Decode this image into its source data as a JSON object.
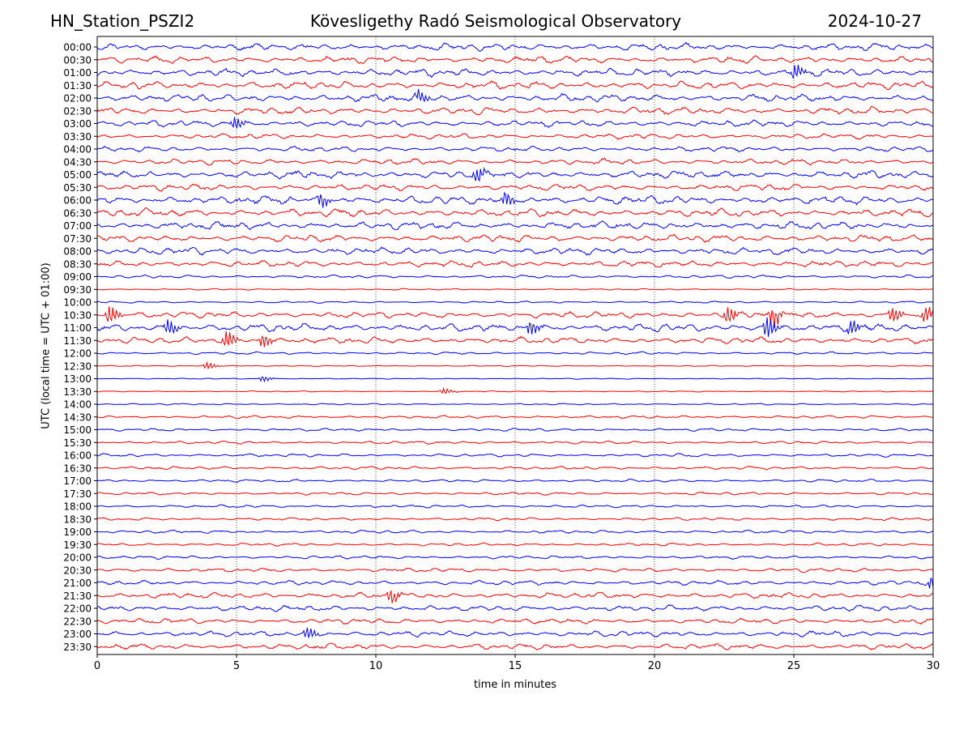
{
  "header": {
    "station": "HN_Station_PSZI2",
    "observatory": "Kövesligethy Radó Seismological Observatory",
    "date": "2024-10-27"
  },
  "chart_data": {
    "type": "line",
    "title": "Kövesligethy Radó Seismological Observatory",
    "xlabel": "time in minutes",
    "ylabel": "UTC (local time = UTC + 01:00)",
    "xlim": [
      0,
      30
    ],
    "xticks": [
      0,
      5,
      10,
      15,
      20,
      25,
      30
    ],
    "grid": "vertical dotted lines at 5-minute intervals",
    "row_labels": [
      "00:00",
      "00:30",
      "01:00",
      "01:30",
      "02:00",
      "02:30",
      "03:00",
      "03:30",
      "04:00",
      "04:30",
      "05:00",
      "05:30",
      "06:00",
      "06:30",
      "07:00",
      "07:30",
      "08:00",
      "08:30",
      "09:00",
      "09:30",
      "10:00",
      "10:30",
      "11:00",
      "11:30",
      "12:00",
      "12:30",
      "13:00",
      "13:30",
      "14:00",
      "14:30",
      "15:00",
      "15:30",
      "16:00",
      "16:30",
      "17:00",
      "17:30",
      "18:00",
      "18:30",
      "19:00",
      "19:30",
      "20:00",
      "20:30",
      "21:00",
      "21:30",
      "22:00",
      "22:30",
      "23:00",
      "23:30"
    ],
    "trace_colors": [
      "#0000ff",
      "#ff0000"
    ],
    "relative_amplitude": [
      0.55,
      0.55,
      0.6,
      0.6,
      0.6,
      0.55,
      0.5,
      0.4,
      0.4,
      0.45,
      0.6,
      0.5,
      0.65,
      0.6,
      0.6,
      0.55,
      0.55,
      0.5,
      0.25,
      0.12,
      0.15,
      0.5,
      0.6,
      0.5,
      0.2,
      0.08,
      0.08,
      0.08,
      0.12,
      0.22,
      0.22,
      0.22,
      0.25,
      0.25,
      0.22,
      0.22,
      0.22,
      0.22,
      0.25,
      0.22,
      0.25,
      0.3,
      0.35,
      0.45,
      0.45,
      0.4,
      0.45,
      0.45
    ],
    "events": [
      {
        "row": "10:30",
        "minute": 0.4,
        "amplitude": 1.3
      },
      {
        "row": "10:30",
        "minute": 22.6,
        "amplitude": 1.2
      },
      {
        "row": "10:30",
        "minute": 24.2,
        "amplitude": 1.4
      },
      {
        "row": "10:30",
        "minute": 28.5,
        "amplitude": 1.1
      },
      {
        "row": "10:30",
        "minute": 29.7,
        "amplitude": 1.2
      },
      {
        "row": "11:00",
        "minute": 2.5,
        "amplitude": 1.1
      },
      {
        "row": "11:00",
        "minute": 15.5,
        "amplitude": 1.1
      },
      {
        "row": "11:00",
        "minute": 24.0,
        "amplitude": 1.6
      },
      {
        "row": "11:00",
        "minute": 27.0,
        "amplitude": 1.1
      },
      {
        "row": "11:30",
        "minute": 4.6,
        "amplitude": 1.2
      },
      {
        "row": "11:30",
        "minute": 5.9,
        "amplitude": 1.0
      },
      {
        "row": "12:30",
        "minute": 3.9,
        "amplitude": 0.5
      },
      {
        "row": "13:00",
        "minute": 5.9,
        "amplitude": 0.4
      },
      {
        "row": "13:30",
        "minute": 12.4,
        "amplitude": 0.4
      },
      {
        "row": "21:30",
        "minute": 10.5,
        "amplitude": 0.9
      },
      {
        "row": "21:00",
        "minute": 29.9,
        "amplitude": 0.9
      },
      {
        "row": "05:00",
        "minute": 13.6,
        "amplitude": 1.0
      },
      {
        "row": "06:00",
        "minute": 8.0,
        "amplitude": 1.0
      },
      {
        "row": "06:00",
        "minute": 14.6,
        "amplitude": 1.0
      },
      {
        "row": "02:00",
        "minute": 11.5,
        "amplitude": 1.0
      },
      {
        "row": "01:00",
        "minute": 25.0,
        "amplitude": 1.0
      },
      {
        "row": "03:00",
        "minute": 4.9,
        "amplitude": 0.9
      },
      {
        "row": "23:00",
        "minute": 7.5,
        "amplitude": 0.9
      }
    ]
  }
}
